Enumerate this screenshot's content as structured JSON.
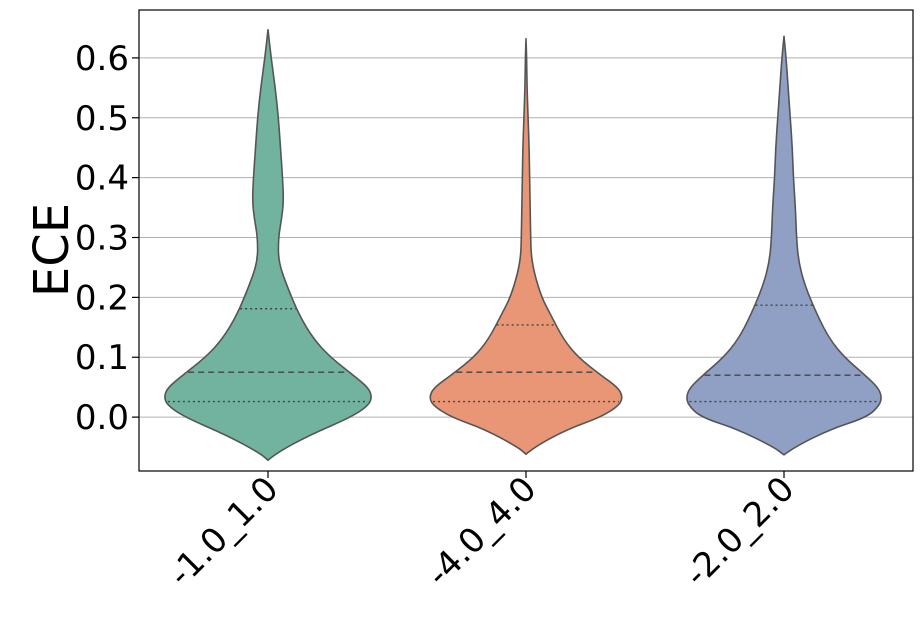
{
  "chart_data": {
    "type": "violin",
    "xlabel": "",
    "ylabel": "ECE",
    "ylim": [
      -0.09,
      0.68
    ],
    "grid": "y",
    "categories": [
      "-1.0_1.0",
      "-4.0_4.0",
      "-2.0_2.0"
    ],
    "y_ticks": [
      "0.0",
      "0.1",
      "0.2",
      "0.3",
      "0.4",
      "0.5",
      "0.6"
    ],
    "y_tick_values": [
      0.0,
      0.1,
      0.2,
      0.3,
      0.4,
      0.5,
      0.6
    ],
    "colors": [
      "#72b39f",
      "#e99676",
      "#90a0c4"
    ],
    "edge_color": "#555555",
    "grid_color": "#b0b0b0",
    "series": [
      {
        "category": "-1.0_1.0",
        "min": -0.072,
        "max": 0.647,
        "q1": 0.026,
        "median": 0.075,
        "q3": 0.181,
        "density_y": [
          -0.072,
          -0.06,
          -0.03,
          0.0,
          0.02,
          0.035,
          0.05,
          0.07,
          0.1,
          0.13,
          0.17,
          0.22,
          0.26,
          0.3,
          0.33,
          0.36,
          0.4,
          0.45,
          0.5,
          0.55,
          0.6,
          0.647
        ],
        "density_width": [
          0.0,
          0.08,
          0.4,
          0.8,
          0.97,
          1.0,
          0.96,
          0.82,
          0.6,
          0.44,
          0.3,
          0.18,
          0.1,
          0.1,
          0.13,
          0.15,
          0.14,
          0.12,
          0.1,
          0.07,
          0.03,
          0.0
        ]
      },
      {
        "category": "-4.0_4.0",
        "min": -0.062,
        "max": 0.632,
        "q1": 0.026,
        "median": 0.075,
        "q3": 0.154,
        "density_y": [
          -0.062,
          -0.05,
          -0.02,
          0.0,
          0.02,
          0.035,
          0.05,
          0.07,
          0.1,
          0.13,
          0.17,
          0.2,
          0.24,
          0.27,
          0.3,
          0.35,
          0.4,
          0.45,
          0.5,
          0.55,
          0.6,
          0.632
        ],
        "density_width": [
          0.0,
          0.08,
          0.4,
          0.72,
          0.9,
          0.93,
          0.88,
          0.72,
          0.5,
          0.36,
          0.24,
          0.15,
          0.08,
          0.05,
          0.045,
          0.04,
          0.035,
          0.03,
          0.02,
          0.01,
          0.006,
          0.0
        ]
      },
      {
        "category": "-2.0_2.0",
        "min": -0.063,
        "max": 0.636,
        "q1": 0.026,
        "median": 0.07,
        "q3": 0.187,
        "density_y": [
          -0.063,
          -0.05,
          -0.02,
          0.0,
          0.02,
          0.035,
          0.05,
          0.07,
          0.1,
          0.13,
          0.17,
          0.22,
          0.26,
          0.3,
          0.35,
          0.4,
          0.45,
          0.5,
          0.55,
          0.6,
          0.636
        ],
        "density_width": [
          0.0,
          0.1,
          0.45,
          0.8,
          0.92,
          0.94,
          0.9,
          0.78,
          0.58,
          0.44,
          0.32,
          0.2,
          0.14,
          0.12,
          0.11,
          0.09,
          0.08,
          0.06,
          0.04,
          0.02,
          0.0
        ]
      }
    ]
  }
}
